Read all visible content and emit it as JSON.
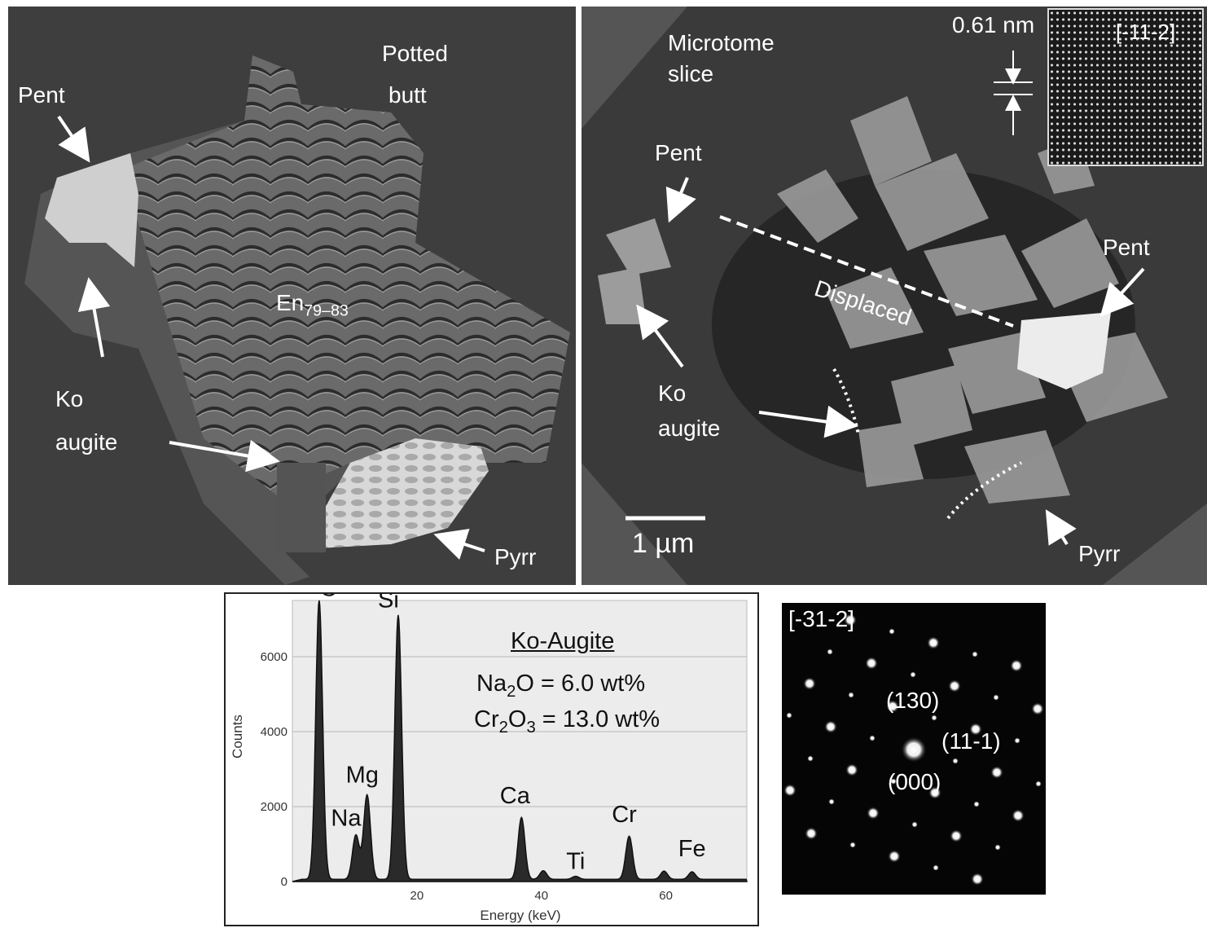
{
  "panel_a": {
    "labels": {
      "pent": "Pent",
      "potted": "Potted",
      "butt": "butt",
      "en": "En",
      "en_sub": "79–83",
      "ko": "Ko",
      "augite": "augite",
      "pyrr": "Pyrr"
    }
  },
  "panel_b": {
    "labels": {
      "microtome": "Microtome",
      "slice": "slice",
      "pent_left": "Pent",
      "pent_right": "Pent",
      "displaced": "Displaced",
      "ko": "Ko",
      "augite": "augite",
      "pyrr": "Pyrr",
      "scale_bar": "1 µm",
      "lattice_spacing": "0.61 nm",
      "zone_axis": "[-11-2]"
    }
  },
  "panel_c": {
    "title": "Ko-Augite",
    "na2o": {
      "pre": "Na",
      "sub": "2",
      "post": "O = 6.0 wt%"
    },
    "cr2o3": {
      "pre": "Cr",
      "sub1": "2",
      "mid": "O",
      "sub2": "3",
      "post": " = 13.0 wt%"
    },
    "chart_data": {
      "type": "line",
      "xlabel": "Energy (keV)",
      "ylabel": "Counts",
      "xlim": [
        0,
        73
      ],
      "ylim": [
        0,
        7500
      ],
      "x_ticks": [
        20,
        40,
        60
      ],
      "y_ticks": [
        0,
        2000,
        4000,
        6000
      ],
      "grid": true,
      "peaks": [
        {
          "label": "O",
          "x": 4.3,
          "y": 7450
        },
        {
          "label": "Na",
          "x": 10.2,
          "y": 1180
        },
        {
          "label": "Mg",
          "x": 12.0,
          "y": 2250
        },
        {
          "label": "Si",
          "x": 17.0,
          "y": 7050
        },
        {
          "label": "Ca",
          "x": 36.8,
          "y": 1650
        },
        {
          "label": "",
          "x": 40.3,
          "y": 230
        },
        {
          "label": "Ti",
          "x": 45.5,
          "y": 80
        },
        {
          "label": "Cr",
          "x": 54.1,
          "y": 1150
        },
        {
          "label": "",
          "x": 59.7,
          "y": 220
        },
        {
          "label": "Fe",
          "x": 64.2,
          "y": 200
        }
      ]
    }
  },
  "panel_d": {
    "zone_axis": "[-31-2]",
    "spot_labels": {
      "s130": "(130)",
      "s111": "(11-1)",
      "s000": "(000)"
    }
  }
}
